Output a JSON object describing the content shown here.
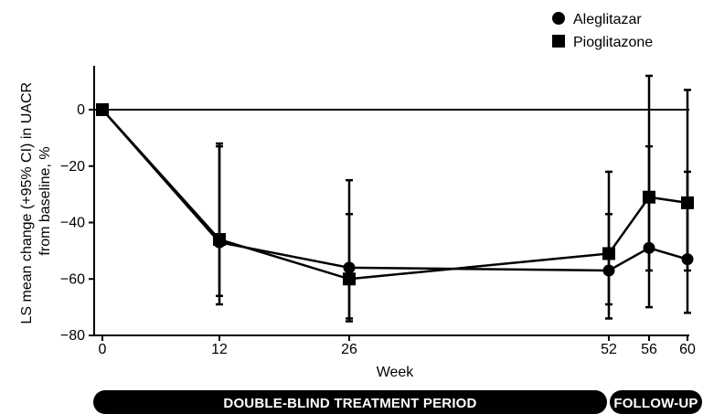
{
  "chart_data": {
    "type": "line",
    "title": "",
    "xlabel": "Week",
    "ylabel_lines": [
      "LS mean change (+95% CI) in UACR",
      "from baseline, %"
    ],
    "x": [
      0,
      12,
      26,
      52,
      56,
      60
    ],
    "x_tick_labels": [
      "0",
      "12",
      "26",
      "52",
      "56",
      "60"
    ],
    "xlim": [
      0,
      60
    ],
    "ylim": [
      -80,
      15
    ],
    "y_ticks": [
      0,
      -20,
      -40,
      -60,
      -80
    ],
    "y_tick_labels": [
      "0",
      "−20",
      "−40",
      "−60",
      "−80"
    ],
    "reference_line_y": 0,
    "legend_position": "top-right",
    "series": [
      {
        "name": "Aleglitazar",
        "marker": "circle",
        "values": [
          0,
          -47,
          -56,
          -57,
          -49,
          -53
        ],
        "ci_low": [
          0,
          -66,
          -74,
          -74,
          -57,
          -72
        ],
        "ci_high": [
          0,
          -12,
          -37,
          -37,
          -13,
          -22
        ]
      },
      {
        "name": "Pioglitazone",
        "marker": "square",
        "values": [
          0,
          -46,
          -60,
          -51,
          -31,
          -33
        ],
        "ci_low": [
          0,
          -69,
          -75,
          -69,
          -70,
          -57
        ],
        "ci_high": [
          0,
          -13,
          -25,
          -22,
          12,
          7
        ]
      }
    ],
    "periods": [
      {
        "label": "DOUBLE-BLIND TREATMENT PERIOD",
        "from": 0,
        "to": 52
      },
      {
        "label": "FOLLOW-UP",
        "from": 52,
        "to": 60
      }
    ],
    "grid": false
  }
}
